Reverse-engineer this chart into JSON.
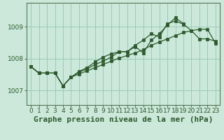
{
  "title": "Graphe pression niveau de la mer (hPa)",
  "bg_color": "#cce8da",
  "grid_color": "#99ccb3",
  "line_color": "#2d5a2d",
  "marker_color": "#2d5a2d",
  "xlim": [
    -0.5,
    23.5
  ],
  "ylim": [
    1006.55,
    1009.75
  ],
  "yticks": [
    1007,
    1008,
    1009
  ],
  "xticks": [
    0,
    1,
    2,
    3,
    4,
    5,
    6,
    7,
    8,
    9,
    10,
    11,
    12,
    13,
    14,
    15,
    16,
    17,
    18,
    19,
    20,
    21,
    22,
    23
  ],
  "series1": [
    1007.75,
    1007.55,
    1007.55,
    1007.55,
    1007.15,
    1007.42,
    1007.6,
    1007.72,
    1007.9,
    1008.05,
    1008.15,
    1008.22,
    1008.22,
    1008.42,
    1008.58,
    1008.78,
    1008.68,
    1009.1,
    1009.18,
    1009.08,
    1008.88,
    1008.62,
    1008.62,
    1008.55
  ],
  "series2": [
    1007.75,
    1007.55,
    1007.55,
    1007.55,
    1007.15,
    1007.42,
    1007.58,
    1007.68,
    1007.82,
    1007.92,
    1008.05,
    1008.22,
    1008.22,
    1008.38,
    1008.18,
    1008.58,
    1008.78,
    1009.05,
    1009.28,
    1009.1,
    null,
    null,
    null,
    null
  ],
  "series3": [
    1007.75,
    1007.55,
    1007.55,
    1007.55,
    1007.15,
    1007.42,
    1007.52,
    1007.62,
    1007.72,
    1007.82,
    1007.92,
    1008.02,
    1008.1,
    1008.18,
    1008.28,
    1008.42,
    1008.52,
    1008.62,
    1008.72,
    1008.82,
    1008.88,
    1008.92,
    1008.92,
    1008.48
  ],
  "xlabel_fontsize": 8,
  "tick_fontsize": 6.5
}
